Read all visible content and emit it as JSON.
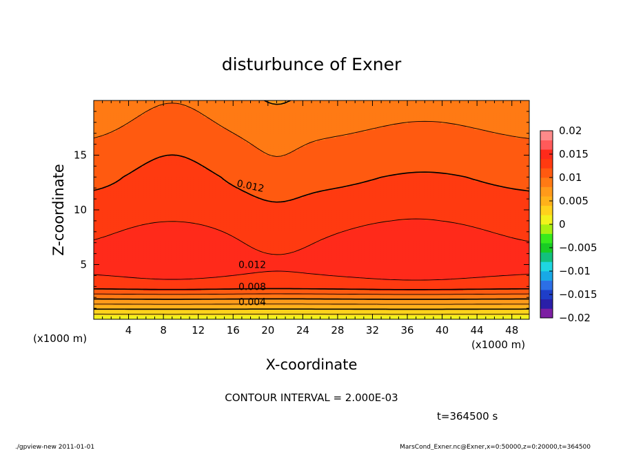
{
  "chart_data": {
    "type": "heatmap",
    "subtype": "filled-contour",
    "title": "disturbunce of Exner",
    "xlabel": "X-coordinate",
    "ylabel": "Z-coordinate",
    "x_unit_left": "(x1000 m)",
    "x_unit_right": "(x1000 m)",
    "xlim": [
      0,
      50
    ],
    "ylim": [
      0,
      20
    ],
    "x_ticks": [
      4,
      8,
      12,
      16,
      20,
      24,
      28,
      32,
      36,
      40,
      44,
      48
    ],
    "y_ticks": [
      5,
      10,
      15
    ],
    "contour_interval_text": "CONTOUR INTERVAL = 2.000E-03",
    "time_text": "t=364500 s",
    "footer_left": "./gpview-new  2011-01-01",
    "footer_right": "MarsCond_Exner.nc@Exner,x=0:50000,z=0:20000,t=364500",
    "contour_labels": [
      {
        "text": "0.012",
        "x": 18.0,
        "z": 12.2
      },
      {
        "text": "0.012",
        "x": 18.2,
        "z": 5.0
      },
      {
        "text": "0.008",
        "x": 18.2,
        "z": 3.0
      },
      {
        "text": "0.004",
        "x": 18.2,
        "z": 1.6
      }
    ],
    "colorbar": {
      "min": -0.02,
      "max": 0.02,
      "tick_values": [
        0.02,
        0.015,
        0.01,
        0.005,
        0,
        -0.005,
        -0.01,
        -0.015,
        -0.02
      ],
      "tick_labels": [
        "0.02",
        "0.015",
        "0.01",
        "0.005",
        "0",
        "−0.005",
        "−0.01",
        "−0.015",
        "−0.02"
      ],
      "colors": [
        "#7d1fa3",
        "#2a1fa8",
        "#1e3ec8",
        "#2c6fe6",
        "#18a9e6",
        "#1fd6e0",
        "#12c07d",
        "#18cc24",
        "#37ea1c",
        "#a8f010",
        "#f2f21c",
        "#ffd21c",
        "#ffb21a",
        "#ff9a1a",
        "#ff7a14",
        "#ff5a10",
        "#ff3a10",
        "#ff2a1a",
        "#ff5a5a",
        "#ff8a8a"
      ]
    }
  }
}
